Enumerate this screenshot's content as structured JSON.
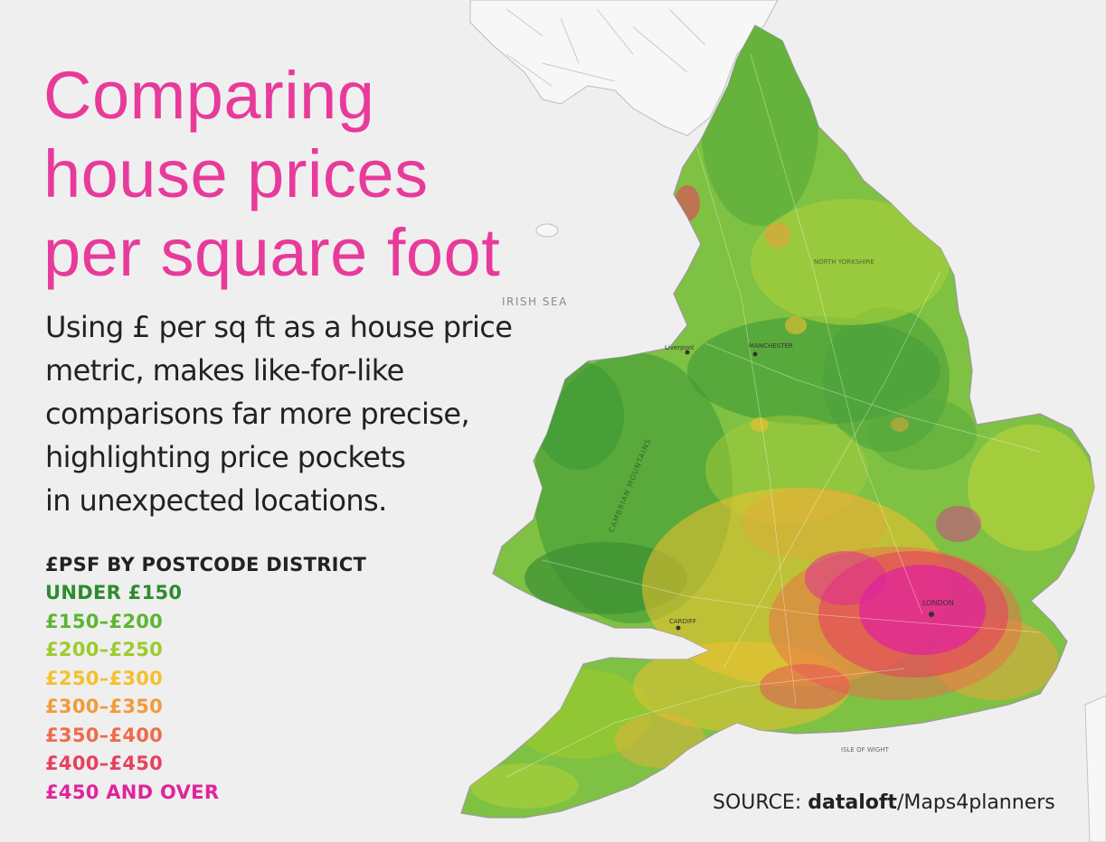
{
  "title": {
    "lines": [
      "Comparing",
      "house prices",
      "per square foot"
    ]
  },
  "description": {
    "lines": [
      "Using £ per sq ft as a house price",
      "metric, makes like-for-like",
      "comparisons far more precise,",
      "highlighting price pockets",
      "in unexpected locations."
    ]
  },
  "legend": {
    "title": "£PSF BY POSTCODE DISTRICT",
    "items": [
      {
        "label": "UNDER £150",
        "color": "#2e8b2e"
      },
      {
        "label": "£150–£200",
        "color": "#5cb531"
      },
      {
        "label": "£200–£250",
        "color": "#9ccb2c"
      },
      {
        "label": "£250–£300",
        "color": "#f2c12e"
      },
      {
        "label": "£300–£350",
        "color": "#f29a3a"
      },
      {
        "label": "£350–£400",
        "color": "#ee6b4a"
      },
      {
        "label": "£400–£450",
        "color": "#e8405f"
      },
      {
        "label": "£450 AND OVER",
        "color": "#e0249b"
      }
    ]
  },
  "source": {
    "prefix": "SOURCE: ",
    "brand": "dataloft",
    "suffix": "/Maps4planners"
  },
  "map_labels": {
    "irish_sea": "IRISH SEA",
    "london": "LONDON",
    "manchester": "MANCHESTER",
    "liverpool": "Liverpool",
    "cardiff": "CARDIFF",
    "cambrian": "CAMBRIAN MOUNTAINS",
    "north_yorkshire": "NORTH YORKSHIRE",
    "isle_of_wight": "ISLE OF WIGHT"
  },
  "colors": {
    "title": "#e83a9b",
    "text": "#222222",
    "background": "#efefef"
  }
}
